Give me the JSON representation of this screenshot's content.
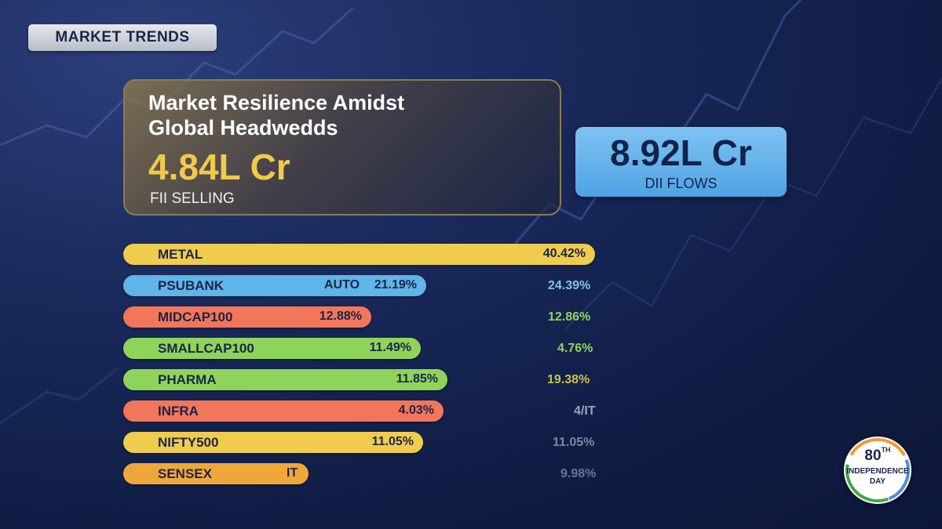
{
  "tag": "MARKET TRENDS",
  "headline": {
    "line1": "Market Resilience Amidst",
    "line2": "Global Headwedds",
    "value": "4.84L Cr",
    "label": "FII SELLING"
  },
  "dii": {
    "value": "8.92L Cr",
    "label": "DII FLOWS"
  },
  "colors": {
    "yellow": "#f0cc4e",
    "blue": "#5fb4e8",
    "orange": "#f2765a",
    "green": "#8fd45a",
    "amber": "#f0a73a"
  },
  "sectors": [
    {
      "name": "METAL",
      "value": "40.42%",
      "extra": "",
      "side": "",
      "fill": 0.9
    },
    {
      "name": "PSUBANK",
      "value": "21.19%",
      "extra": "AUTO",
      "side": "24.39%",
      "fill": 0.58
    },
    {
      "name": "MIDCAP100",
      "value": "12.88%",
      "extra": "",
      "side": "12.86%",
      "fill": 0.47
    },
    {
      "name": "SMALLCAP100",
      "value": "11.49%",
      "extra": "",
      "side": "4.76%",
      "fill": 0.57
    },
    {
      "name": "PHARMA",
      "value": "11.85%",
      "extra": "",
      "side": "19.38%",
      "fill": 0.62
    },
    {
      "name": "INFRA",
      "value": "4.03%",
      "extra": "",
      "side": "4/IT",
      "fill": 0.61
    },
    {
      "name": "NIFTY500",
      "value": "11.05%",
      "extra": "",
      "side": "11.05%",
      "fill": 0.57
    },
    {
      "name": "SENSEX",
      "value": "",
      "extra": "IT",
      "side": "9.98%",
      "fill": 0.35
    }
  ],
  "badge": {
    "number": "80",
    "sup": "TH",
    "line1": "INDEPENDENCE",
    "line2": "DAY"
  }
}
